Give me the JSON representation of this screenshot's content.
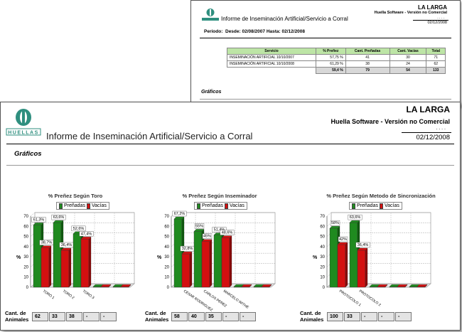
{
  "colors": {
    "prenadas": "#1f8a1f",
    "vacias": "#d31010",
    "header_green": "#bde5a6"
  },
  "back_report": {
    "company": "LA LARGA",
    "software": "Huella Software - Versión no Comercial",
    "dots": ". . . .",
    "date": "02/12/2008",
    "title": "Informe de Inseminación Artificial/Servicio a Corral",
    "periodo_label": "Período:",
    "periodo_value": "Desde: 02/08/2007 Hasta: 02/12/2008",
    "table": {
      "headers": [
        "Servicio",
        "% Preñez",
        "Cant. Preñadas",
        "Cant. Vacías",
        "Total"
      ],
      "rows": [
        [
          "INSEMINACIÓN ARTIFICIAL 10/10/2007",
          "57,75 %",
          "41",
          "30",
          "71"
        ],
        [
          "INSEMINACIÓN ARTIFICIAL 10/10/2008",
          "61,29 %",
          "38",
          "24",
          "62"
        ]
      ],
      "total": [
        "",
        "59,4 %",
        "79",
        "54",
        "133"
      ]
    },
    "graficos": "Gráficos"
  },
  "front_report": {
    "company": "LA LARGA",
    "software": "Huella Software - Versión no Comercial",
    "dots": ". . . .",
    "date": "02/12/2008",
    "title": "Informe de Inseminación Artificial/Servicio a Corral",
    "graficos": "Gráficos"
  },
  "legend": {
    "prenadas": "Preñadas",
    "vacias": "Vacías"
  },
  "cant_label": "Cant. de\nAnimales",
  "chart_data": [
    {
      "type": "bar",
      "title": "% Preñez Según Toro",
      "ylabel": "%",
      "ylim": [
        0,
        70
      ],
      "yticks": [
        0,
        10,
        20,
        30,
        40,
        50,
        60,
        70
      ],
      "categories": [
        "TORO 1",
        "TORO 2",
        "TORO 3",
        "",
        ""
      ],
      "series": [
        {
          "name": "Preñadas",
          "values": [
            61.3,
            63.6,
            52.6,
            0,
            0
          ],
          "labels": [
            "61,3%",
            "63,6%",
            "52,6%",
            "",
            ""
          ]
        },
        {
          "name": "Vacías",
          "values": [
            38.7,
            36.4,
            47.4,
            0,
            0
          ],
          "labels": [
            "38,7%",
            "36,4%",
            "47,4%",
            "",
            ""
          ]
        }
      ],
      "counts": [
        "62",
        "33",
        "38",
        "-",
        "-"
      ]
    },
    {
      "type": "bar",
      "title": "% Preñez Según Inseminador",
      "ylabel": "%",
      "ylim": [
        0,
        70
      ],
      "yticks": [
        0,
        10,
        20,
        30,
        40,
        50,
        60,
        70
      ],
      "categories": [
        "CESAR RODRIGUEZ",
        "CARLOS PEREZ",
        "MARCELO WITHE",
        "",
        ""
      ],
      "series": [
        {
          "name": "Preñadas",
          "values": [
            67.2,
            55.0,
            51.4,
            0,
            0
          ],
          "labels": [
            "67,2%",
            "55%",
            "51,4%",
            "",
            ""
          ]
        },
        {
          "name": "Vacías",
          "values": [
            32.8,
            45.0,
            48.6,
            0,
            0
          ],
          "labels": [
            "32,8%",
            "45%",
            "48,6%",
            "",
            ""
          ]
        }
      ],
      "counts": [
        "58",
        "40",
        "35",
        "-",
        "-"
      ]
    },
    {
      "type": "bar",
      "title": "% Preñez Según Metodo de Sincronización",
      "ylabel": "%",
      "ylim": [
        0,
        70
      ],
      "yticks": [
        0,
        10,
        20,
        30,
        40,
        50,
        60,
        70
      ],
      "categories": [
        "PROTOCOLO 1",
        "PROTOCOLO 2",
        "",
        "",
        ""
      ],
      "series": [
        {
          "name": "Preñadas",
          "values": [
            58.0,
            63.6,
            0,
            0,
            0
          ],
          "labels": [
            "58%",
            "63,6%",
            "",
            "",
            ""
          ]
        },
        {
          "name": "Vacías",
          "values": [
            42.0,
            36.4,
            0,
            0,
            0
          ],
          "labels": [
            "42%",
            "36,4%",
            "",
            "",
            ""
          ]
        }
      ],
      "counts": [
        "100",
        "33",
        "-",
        "-",
        "-"
      ]
    }
  ]
}
